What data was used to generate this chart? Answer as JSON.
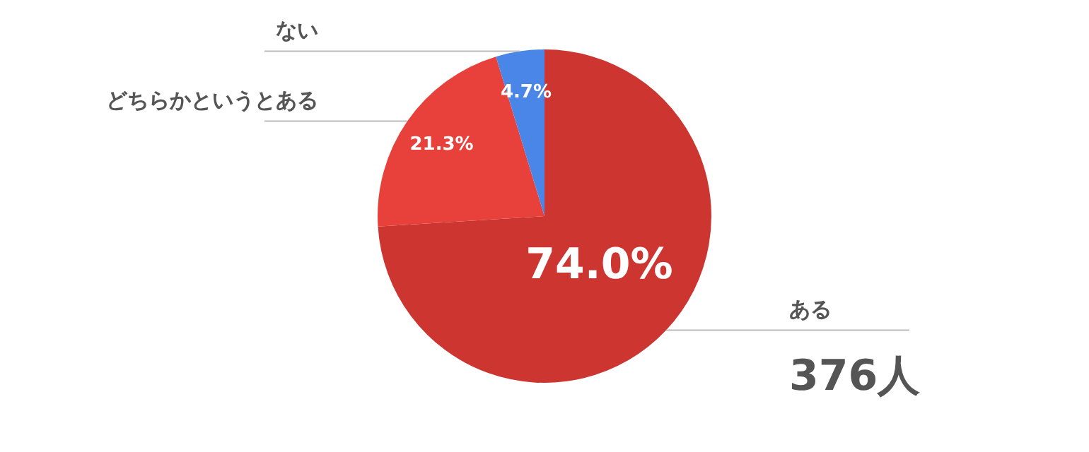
{
  "chart_data": {
    "type": "pie",
    "categories": [
      "ある",
      "どちらかというとある",
      "ない"
    ],
    "values": [
      74.0,
      21.3,
      4.7
    ],
    "colors": [
      "#cd3530",
      "#e8403a",
      "#4a86e8"
    ],
    "value_labels": [
      "74.0%",
      "21.3%",
      "4.7%"
    ],
    "annotations": [
      "376人"
    ],
    "legend": false
  }
}
